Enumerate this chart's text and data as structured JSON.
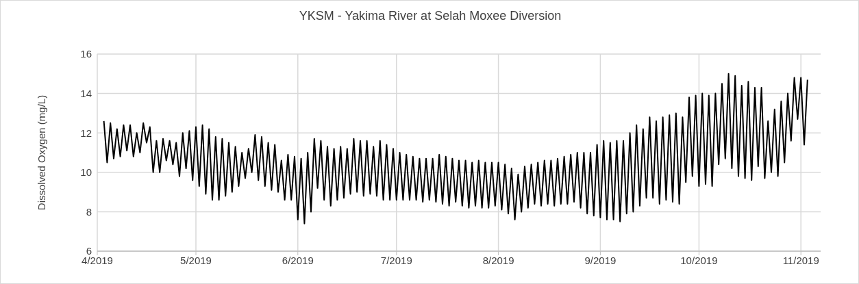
{
  "chart_data": {
    "type": "line",
    "title": "YKSM - Yakima River at Selah Moxee Diversion",
    "ylabel": "Dissolved Oxygen (mg/L)",
    "xlim": [
      "2019-04-01",
      "2019-11-07"
    ],
    "xticks": [
      {
        "value": "2019-04",
        "label": "4/2019"
      },
      {
        "value": "2019-05",
        "label": "5/2019"
      },
      {
        "value": "2019-06",
        "label": "6/2019"
      },
      {
        "value": "2019-07",
        "label": "7/2019"
      },
      {
        "value": "2019-08",
        "label": "8/2019"
      },
      {
        "value": "2019-09",
        "label": "9/2019"
      },
      {
        "value": "2019-10",
        "label": "10/2019"
      },
      {
        "value": "2019-11",
        "label": "11/2019"
      }
    ],
    "ylim": [
      6,
      16
    ],
    "yticks": [
      6,
      8,
      10,
      12,
      14,
      16
    ],
    "grid": true,
    "marker": "none",
    "line_style": "solid",
    "x": [
      "2019-04-03",
      "2019-04-04",
      "2019-04-05",
      "2019-04-06",
      "2019-04-07",
      "2019-04-08",
      "2019-04-09",
      "2019-04-10",
      "2019-04-11",
      "2019-04-12",
      "2019-04-13",
      "2019-04-14",
      "2019-04-15",
      "2019-04-16",
      "2019-04-17",
      "2019-04-18",
      "2019-04-19",
      "2019-04-20",
      "2019-04-21",
      "2019-04-22",
      "2019-04-23",
      "2019-04-24",
      "2019-04-25",
      "2019-04-26",
      "2019-04-27",
      "2019-04-28",
      "2019-04-29",
      "2019-04-30",
      "2019-05-01",
      "2019-05-02",
      "2019-05-03",
      "2019-05-04",
      "2019-05-05",
      "2019-05-06",
      "2019-05-07",
      "2019-05-08",
      "2019-05-09",
      "2019-05-10",
      "2019-05-11",
      "2019-05-12",
      "2019-05-13",
      "2019-05-14",
      "2019-05-15",
      "2019-05-16",
      "2019-05-17",
      "2019-05-18",
      "2019-05-19",
      "2019-05-20",
      "2019-05-21",
      "2019-05-22",
      "2019-05-23",
      "2019-05-24",
      "2019-05-25",
      "2019-05-26",
      "2019-05-27",
      "2019-05-28",
      "2019-05-29",
      "2019-05-30",
      "2019-05-31",
      "2019-06-01",
      "2019-06-02",
      "2019-06-03",
      "2019-06-04",
      "2019-06-05",
      "2019-06-06",
      "2019-06-07",
      "2019-06-08",
      "2019-06-09",
      "2019-06-10",
      "2019-06-11",
      "2019-06-12",
      "2019-06-13",
      "2019-06-14",
      "2019-06-15",
      "2019-06-16",
      "2019-06-17",
      "2019-06-18",
      "2019-06-19",
      "2019-06-20",
      "2019-06-21",
      "2019-06-22",
      "2019-06-23",
      "2019-06-24",
      "2019-06-25",
      "2019-06-26",
      "2019-06-27",
      "2019-06-28",
      "2019-06-29",
      "2019-06-30",
      "2019-07-01",
      "2019-07-02",
      "2019-07-03",
      "2019-07-04",
      "2019-07-05",
      "2019-07-06",
      "2019-07-07",
      "2019-07-08",
      "2019-07-09",
      "2019-07-10",
      "2019-07-11",
      "2019-07-12",
      "2019-07-13",
      "2019-07-14",
      "2019-07-15",
      "2019-07-16",
      "2019-07-17",
      "2019-07-18",
      "2019-07-19",
      "2019-07-20",
      "2019-07-21",
      "2019-07-22",
      "2019-07-23",
      "2019-07-24",
      "2019-07-25",
      "2019-07-26",
      "2019-07-27",
      "2019-07-28",
      "2019-07-29",
      "2019-07-30",
      "2019-07-31",
      "2019-08-01",
      "2019-08-02",
      "2019-08-03",
      "2019-08-04",
      "2019-08-05",
      "2019-08-06",
      "2019-08-07",
      "2019-08-08",
      "2019-08-09",
      "2019-08-10",
      "2019-08-11",
      "2019-08-12",
      "2019-08-13",
      "2019-08-14",
      "2019-08-15",
      "2019-08-16",
      "2019-08-17",
      "2019-08-18",
      "2019-08-19",
      "2019-08-20",
      "2019-08-21",
      "2019-08-22",
      "2019-08-23",
      "2019-08-24",
      "2019-08-25",
      "2019-08-26",
      "2019-08-27",
      "2019-08-28",
      "2019-08-29",
      "2019-08-30",
      "2019-08-31",
      "2019-09-01",
      "2019-09-02",
      "2019-09-03",
      "2019-09-04",
      "2019-09-05",
      "2019-09-06",
      "2019-09-07",
      "2019-09-08",
      "2019-09-09",
      "2019-09-10",
      "2019-09-11",
      "2019-09-12",
      "2019-09-13",
      "2019-09-14",
      "2019-09-15",
      "2019-09-16",
      "2019-09-17",
      "2019-09-18",
      "2019-09-19",
      "2019-09-20",
      "2019-09-21",
      "2019-09-22",
      "2019-09-23",
      "2019-09-24",
      "2019-09-25",
      "2019-09-26",
      "2019-09-27",
      "2019-09-28",
      "2019-09-29",
      "2019-09-30",
      "2019-10-01",
      "2019-10-02",
      "2019-10-03",
      "2019-10-04",
      "2019-10-05",
      "2019-10-06",
      "2019-10-07",
      "2019-10-08",
      "2019-10-09",
      "2019-10-10",
      "2019-10-11",
      "2019-10-12",
      "2019-10-13",
      "2019-10-14",
      "2019-10-15",
      "2019-10-16",
      "2019-10-17",
      "2019-10-18",
      "2019-10-19",
      "2019-10-20",
      "2019-10-21",
      "2019-10-22",
      "2019-10-23",
      "2019-10-24",
      "2019-10-25",
      "2019-10-26",
      "2019-10-27",
      "2019-10-28",
      "2019-10-29",
      "2019-10-30",
      "2019-10-31",
      "2019-11-01",
      "2019-11-02",
      "2019-11-03"
    ],
    "series": [
      {
        "color": "#000000",
        "values": [
          12.6,
          10.5,
          12.5,
          10.7,
          12.2,
          10.8,
          12.4,
          11.1,
          12.4,
          10.8,
          12.0,
          11.0,
          12.5,
          11.5,
          12.3,
          10.0,
          11.6,
          10.0,
          11.7,
          10.6,
          11.6,
          10.4,
          11.5,
          9.8,
          12.0,
          10.2,
          12.1,
          9.6,
          12.3,
          9.3,
          12.4,
          8.9,
          12.2,
          8.6,
          11.8,
          8.6,
          11.7,
          8.8,
          11.5,
          9.0,
          11.3,
          9.3,
          11.0,
          9.7,
          11.2,
          10.0,
          11.9,
          9.6,
          11.8,
          9.3,
          11.5,
          9.1,
          11.4,
          9.0,
          10.6,
          8.6,
          10.9,
          8.6,
          10.8,
          7.6,
          10.7,
          7.4,
          11.0,
          8.0,
          11.7,
          9.2,
          11.6,
          8.6,
          11.3,
          8.3,
          11.2,
          8.6,
          11.3,
          8.7,
          11.2,
          8.9,
          11.7,
          9.0,
          11.6,
          8.8,
          11.6,
          8.9,
          11.3,
          8.8,
          11.6,
          8.6,
          11.4,
          8.6,
          11.2,
          8.6,
          11.0,
          8.6,
          10.9,
          8.6,
          10.8,
          8.6,
          10.7,
          8.5,
          10.7,
          8.6,
          10.7,
          8.5,
          10.9,
          8.4,
          10.8,
          8.3,
          10.7,
          8.5,
          10.6,
          8.3,
          10.6,
          8.2,
          10.5,
          8.3,
          10.6,
          8.2,
          10.5,
          8.2,
          10.5,
          8.3,
          10.5,
          8.1,
          10.4,
          7.9,
          10.2,
          7.6,
          9.9,
          8.0,
          10.3,
          8.2,
          10.4,
          8.4,
          10.5,
          8.3,
          10.6,
          8.4,
          10.6,
          8.3,
          10.7,
          8.4,
          10.8,
          8.4,
          10.9,
          8.5,
          11.0,
          8.2,
          11.0,
          7.9,
          11.0,
          7.8,
          11.4,
          7.7,
          11.6,
          7.6,
          11.5,
          7.6,
          11.6,
          7.5,
          11.6,
          7.9,
          12.0,
          8.0,
          12.4,
          8.3,
          12.2,
          8.7,
          12.8,
          8.7,
          12.6,
          8.4,
          12.8,
          8.6,
          12.9,
          8.5,
          13.0,
          8.4,
          12.8,
          9.5,
          13.8,
          9.8,
          13.9,
          9.3,
          14.0,
          9.4,
          13.9,
          9.3,
          14.0,
          10.4,
          14.5,
          10.7,
          15.0,
          10.2,
          14.9,
          9.8,
          14.4,
          9.7,
          14.6,
          9.6,
          14.3,
          10.3,
          14.3,
          9.7,
          12.6,
          10.0,
          13.2,
          9.8,
          13.6,
          10.5,
          14.0,
          11.6,
          14.8,
          12.7,
          14.8,
          11.4,
          14.7
        ]
      }
    ]
  }
}
